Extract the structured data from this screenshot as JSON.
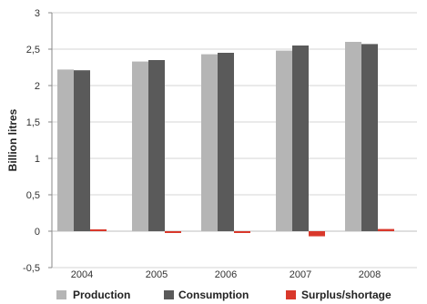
{
  "chart_data": {
    "type": "bar",
    "categories": [
      "2004",
      "2005",
      "2006",
      "2007",
      "2008"
    ],
    "series": [
      {
        "name": "Production",
        "color": "#b5b5b5",
        "values": [
          2.22,
          2.33,
          2.43,
          2.48,
          2.6
        ]
      },
      {
        "name": "Consumption",
        "color": "#5a5a5a",
        "values": [
          2.21,
          2.35,
          2.45,
          2.55,
          2.57
        ]
      },
      {
        "name": "Surplus/shortage",
        "color": "#d9382b",
        "values": [
          0.01,
          -0.02,
          -0.02,
          -0.07,
          0.03
        ]
      }
    ],
    "ylabel": "Billion litres",
    "ylim": [
      -0.5,
      3
    ],
    "yticks": [
      "3",
      "2,5",
      "2",
      "1,5",
      "1",
      "0,5",
      "0",
      "-0,5"
    ],
    "ytick_values": [
      3,
      2.5,
      2,
      1.5,
      1,
      0.5,
      0,
      -0.5
    ],
    "grid": true,
    "legend_position": "bottom"
  }
}
